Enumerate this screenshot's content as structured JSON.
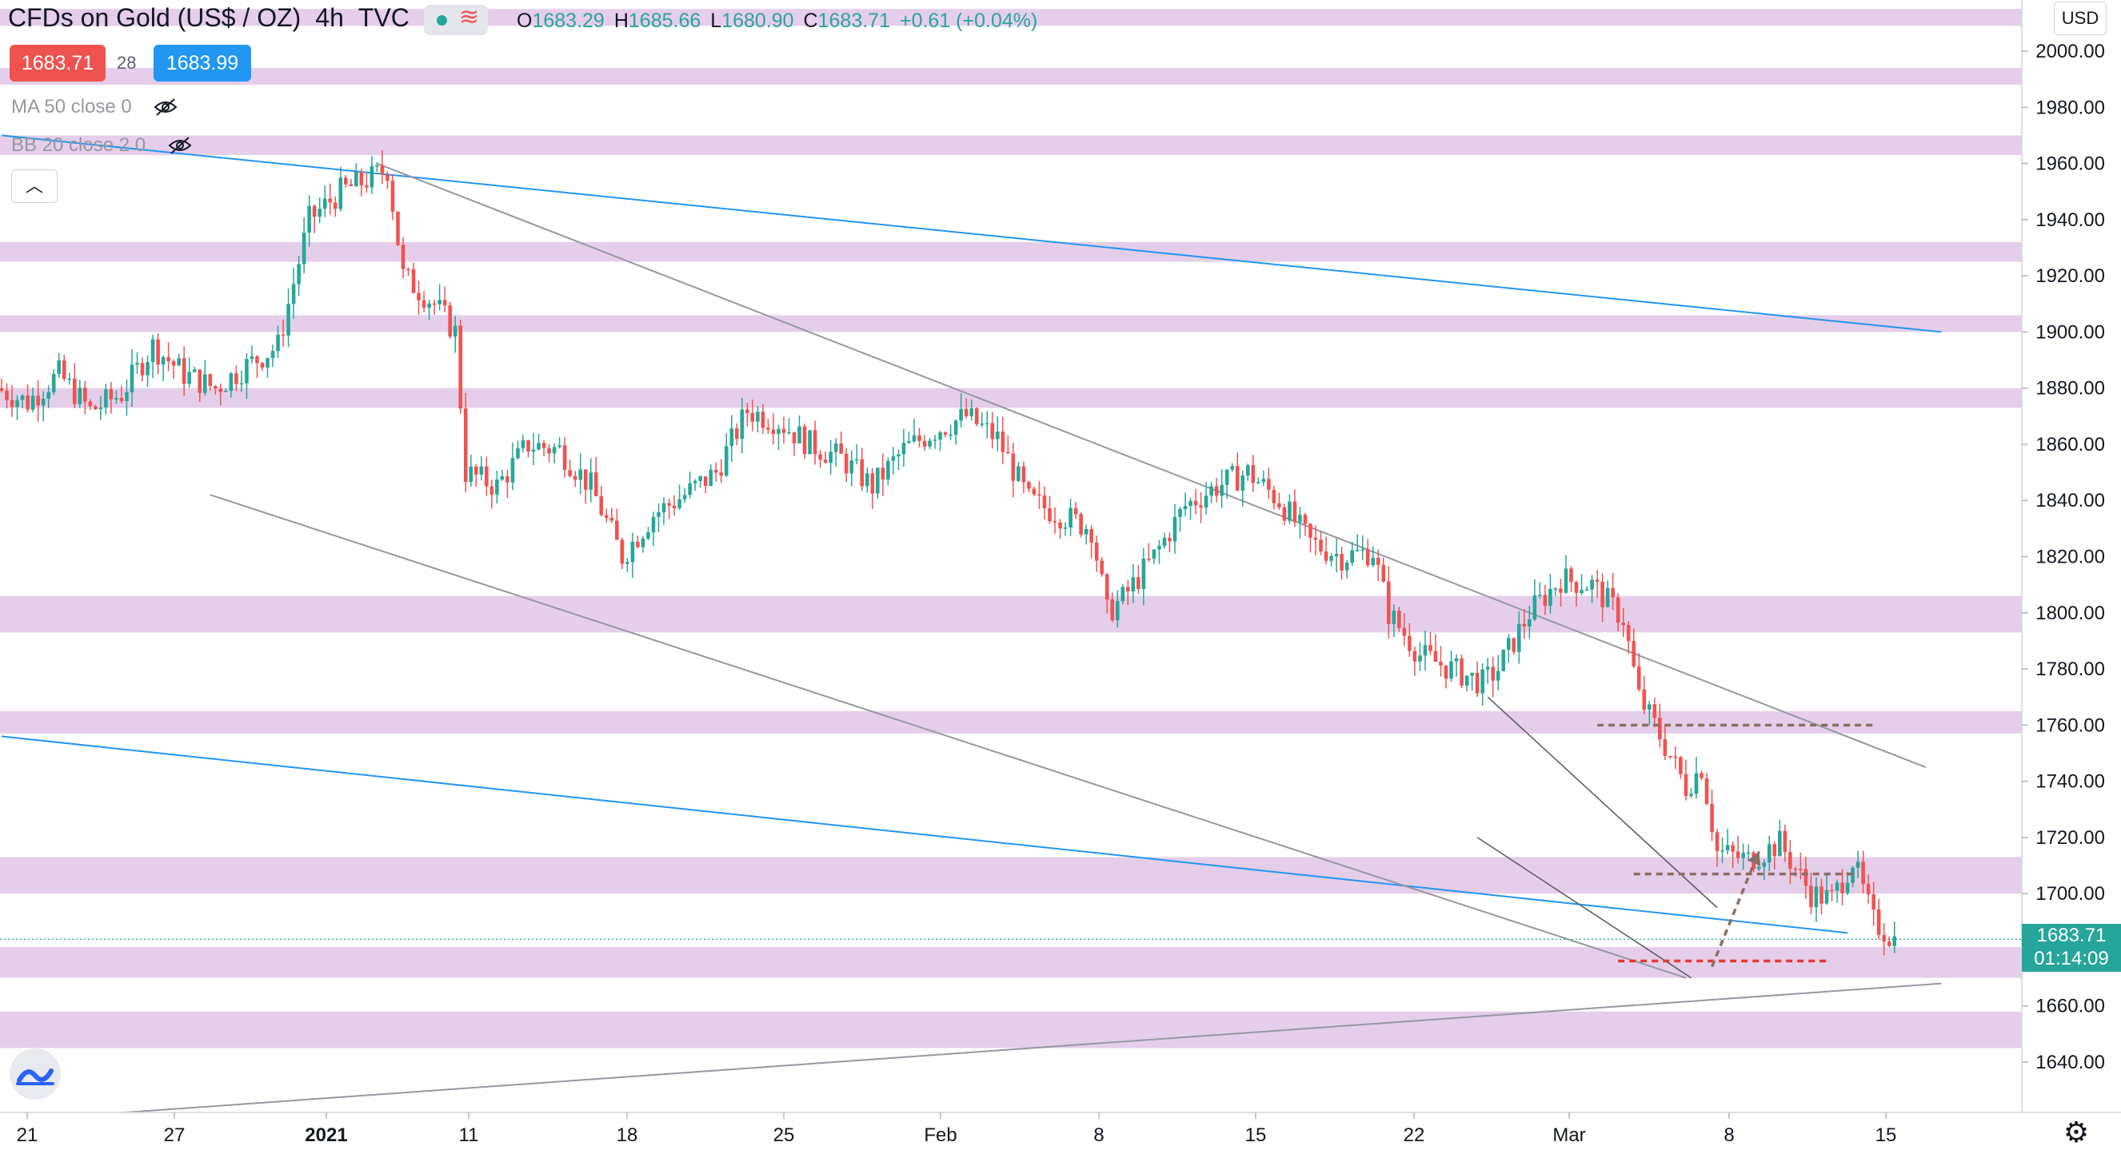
{
  "header": {
    "symbol": "CFDs on Gold (US$ / OZ)",
    "interval": "4h",
    "source": "TVC",
    "ohlc": {
      "o_label": "O",
      "o": "1683.29",
      "h_label": "H",
      "h": "1685.66",
      "l_label": "L",
      "l": "1680.90",
      "c_label": "C",
      "c": "1683.71",
      "change": "+0.61 (+0.04%)"
    },
    "bid": "1683.71",
    "spread": "28",
    "ask": "1683.99"
  },
  "indicators": {
    "ma": "MA 50 close 0",
    "bb": "BB 20 close 2 0"
  },
  "colors": {
    "up": "#26a69a",
    "down": "#ef5350",
    "zone": "#e1c5e6",
    "trendline": "#2196f3",
    "channel": "#9598a1",
    "target": "#8d6e63",
    "stop": "#e53935"
  },
  "axis": {
    "currency": "USD",
    "current_price": "1683.71",
    "countdown": "01:14:09"
  },
  "icons": [
    "eye-off-icon",
    "chevron-up-icon",
    "tradingview-logo-icon",
    "gear-icon"
  ],
  "chart_data": {
    "type": "candlestick",
    "ylim": [
      1620,
      2020
    ],
    "y_ticks": [
      1640,
      1660,
      1680,
      1700,
      1720,
      1740,
      1760,
      1780,
      1800,
      1820,
      1840,
      1860,
      1880,
      1900,
      1920,
      1940,
      1960,
      1980,
      2000
    ],
    "x_ticks": [
      "21",
      "27",
      "2021",
      "11",
      "18",
      "25",
      "Feb",
      "8",
      "15",
      "22",
      "Mar",
      "8",
      "15"
    ],
    "price_path": [
      [
        0,
        1880
      ],
      [
        6,
        1875
      ],
      [
        12,
        1885
      ],
      [
        18,
        1872
      ],
      [
        24,
        1878
      ],
      [
        30,
        1895
      ],
      [
        36,
        1885
      ],
      [
        42,
        1880
      ],
      [
        48,
        1888
      ],
      [
        54,
        1895
      ],
      [
        60,
        1940
      ],
      [
        66,
        1950
      ],
      [
        72,
        1955
      ],
      [
        75,
        1958
      ],
      [
        78,
        1920
      ],
      [
        84,
        1910
      ],
      [
        88,
        1900
      ],
      [
        90,
        1850
      ],
      [
        96,
        1845
      ],
      [
        102,
        1860
      ],
      [
        108,
        1858
      ],
      [
        114,
        1845
      ],
      [
        120,
        1820
      ],
      [
        126,
        1835
      ],
      [
        132,
        1842
      ],
      [
        138,
        1850
      ],
      [
        144,
        1872
      ],
      [
        150,
        1868
      ],
      [
        156,
        1860
      ],
      [
        162,
        1855
      ],
      [
        168,
        1845
      ],
      [
        174,
        1858
      ],
      [
        180,
        1865
      ],
      [
        186,
        1870
      ],
      [
        192,
        1862
      ],
      [
        198,
        1840
      ],
      [
        204,
        1835
      ],
      [
        210,
        1830
      ],
      [
        213,
        1800
      ],
      [
        216,
        1805
      ],
      [
        222,
        1820
      ],
      [
        228,
        1838
      ],
      [
        234,
        1845
      ],
      [
        240,
        1850
      ],
      [
        246,
        1840
      ],
      [
        252,
        1825
      ],
      [
        258,
        1820
      ],
      [
        264,
        1822
      ],
      [
        267,
        1800
      ],
      [
        273,
        1785
      ],
      [
        279,
        1780
      ],
      [
        285,
        1775
      ],
      [
        288,
        1780
      ],
      [
        294,
        1800
      ],
      [
        300,
        1812
      ],
      [
        306,
        1810
      ],
      [
        312,
        1798
      ],
      [
        315,
        1770
      ],
      [
        318,
        1760
      ],
      [
        324,
        1738
      ],
      [
        327,
        1745
      ],
      [
        330,
        1715
      ],
      [
        336,
        1712
      ],
      [
        342,
        1718
      ],
      [
        348,
        1700
      ],
      [
        352,
        1698
      ],
      [
        356,
        1712
      ],
      [
        360,
        1690
      ],
      [
        364,
        1683.7
      ]
    ],
    "zones": [
      [
        2015,
        2009
      ],
      [
        1994,
        1988
      ],
      [
        1970,
        1963
      ],
      [
        1932,
        1925
      ],
      [
        1906,
        1900
      ],
      [
        1880,
        1873
      ],
      [
        1806,
        1793
      ],
      [
        1765,
        1757
      ],
      [
        1713,
        1700
      ],
      [
        1681,
        1670
      ],
      [
        1658,
        1645
      ]
    ],
    "trendlines": [
      {
        "kind": "blue-upper",
        "from": [
          0,
          1970
        ],
        "to": [
          372,
          1900
        ]
      },
      {
        "kind": "blue-lower",
        "from": [
          0,
          1756
        ],
        "to": [
          354,
          1686
        ]
      },
      {
        "kind": "channel-upper",
        "from": [
          72,
          1960
        ],
        "to": [
          369,
          1745
        ]
      },
      {
        "kind": "channel-lower",
        "from": [
          40,
          1842
        ],
        "to": [
          323,
          1670
        ]
      },
      {
        "kind": "support",
        "from": [
          8,
          1620
        ],
        "to": [
          372,
          1668
        ]
      },
      {
        "kind": "wedge-upper",
        "from": [
          285,
          1770
        ],
        "to": [
          329,
          1695
        ]
      },
      {
        "kind": "wedge-lower",
        "from": [
          283,
          1720
        ],
        "to": [
          324,
          1670
        ]
      }
    ],
    "levels": [
      {
        "kind": "target-high",
        "value": 1760,
        "from": 306,
        "to": 359
      },
      {
        "kind": "target-mid",
        "value": 1707,
        "from": 313,
        "to": 356
      },
      {
        "kind": "stop",
        "value": 1676,
        "from": 310,
        "to": 350
      }
    ],
    "projection": {
      "from": [
        328,
        1674
      ],
      "to": [
        337,
        1715
      ]
    }
  }
}
